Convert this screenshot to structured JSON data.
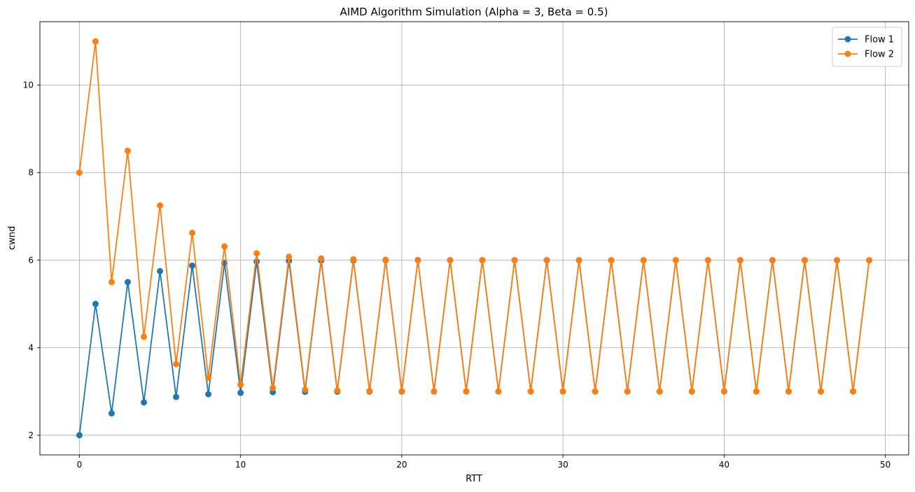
{
  "chart_data": {
    "type": "line",
    "title": "AIMD Algorithm Simulation (Alpha = 3, Beta = 0.5)",
    "xlabel": "RTT",
    "ylabel": "cwnd",
    "xlim": [
      -2.45,
      51.45
    ],
    "ylim": [
      1.55,
      11.45
    ],
    "xticks": [
      0,
      10,
      20,
      30,
      40,
      50
    ],
    "yticks": [
      2,
      4,
      6,
      8,
      10
    ],
    "grid": true,
    "legend_position": "upper right",
    "markers": true,
    "x": [
      0,
      1,
      2,
      3,
      4,
      5,
      6,
      7,
      8,
      9,
      10,
      11,
      12,
      13,
      14,
      15,
      16,
      17,
      18,
      19,
      20,
      21,
      22,
      23,
      24,
      25,
      26,
      27,
      28,
      29,
      30,
      31,
      32,
      33,
      34,
      35,
      36,
      37,
      38,
      39,
      40,
      41,
      42,
      43,
      44,
      45,
      46,
      47,
      48,
      49
    ],
    "series": [
      {
        "name": "Flow 1",
        "color": "#1f77b4",
        "values": [
          2,
          5,
          2.5,
          5.5,
          2.75,
          5.75,
          2.875,
          5.875,
          2.9375,
          5.9375,
          2.96875,
          5.96875,
          2.984375,
          5.984375,
          2.9921875,
          5.9921875,
          2.99609375,
          5.99609375,
          2.998046875,
          5.998046875,
          2.999,
          5.999,
          2.9995,
          5.9995,
          2.99976,
          5.99976,
          2.99988,
          5.99988,
          2.99994,
          5.99994,
          2.99997,
          5.99997,
          2.999985,
          5.999985,
          2.999992,
          5.999992,
          2.999996,
          5.999996,
          2.999998,
          5.999998,
          2.999999,
          5.999999,
          3,
          6,
          3,
          6,
          3,
          6,
          3,
          6
        ]
      },
      {
        "name": "Flow 2",
        "color": "#ff7f0e",
        "values": [
          8,
          11,
          5.5,
          8.5,
          4.25,
          7.25,
          3.625,
          6.625,
          3.3125,
          6.3125,
          3.15625,
          6.15625,
          3.078125,
          6.078125,
          3.0390625,
          6.0390625,
          3.01953125,
          6.01953125,
          3.009765625,
          6.009765625,
          3.0049,
          6.0049,
          3.0024,
          6.0024,
          3.0012,
          6.0012,
          3.0006,
          6.0006,
          3.0003,
          6.0003,
          3.00015,
          6.00015,
          3.000076,
          6.000076,
          3.000038,
          6.000038,
          3.000019,
          6.000019,
          3.00001,
          6.00001,
          3.000005,
          6.000005,
          3,
          6,
          3,
          6,
          3,
          6,
          3,
          6
        ]
      }
    ]
  }
}
